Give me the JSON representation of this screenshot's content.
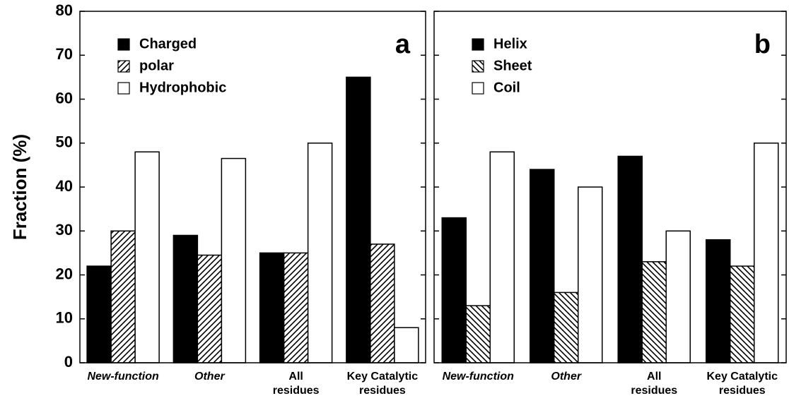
{
  "chart_data": [
    {
      "type": "bar",
      "ylabel": "Fraction (%)",
      "annotation": "a",
      "categories": [
        "New-function",
        "Other",
        "All residues",
        "Key Catalytic residues"
      ],
      "category_styles": [
        "italic",
        "italic",
        "normal",
        "normal"
      ],
      "series": [
        {
          "name": "Charged",
          "color": "#000000",
          "pattern": "solid",
          "values": [
            22,
            29,
            25,
            65
          ]
        },
        {
          "name": "polar",
          "color": "#ffffff",
          "pattern": "hatch-up",
          "values": [
            30,
            24.5,
            25,
            27
          ]
        },
        {
          "name": "Hydrophobic",
          "color": "#ffffff",
          "pattern": "solid",
          "values": [
            48,
            46.5,
            50,
            8
          ]
        }
      ],
      "ylim": [
        0,
        80
      ],
      "yticks": [
        0,
        10,
        20,
        30,
        40,
        50,
        60,
        70,
        80
      ],
      "ytick_labels": true,
      "legend": "upper left"
    },
    {
      "type": "bar",
      "annotation": "b",
      "categories": [
        "New-function",
        "Other",
        "All residues",
        "Key Catalytic residues"
      ],
      "category_styles": [
        "italic",
        "italic",
        "normal",
        "normal"
      ],
      "series": [
        {
          "name": "Helix",
          "color": "#000000",
          "pattern": "solid",
          "values": [
            33,
            44,
            47,
            28
          ]
        },
        {
          "name": "Sheet",
          "color": "#ffffff",
          "pattern": "hatch-down",
          "values": [
            13,
            16,
            23,
            22
          ]
        },
        {
          "name": "Coil",
          "color": "#ffffff",
          "pattern": "solid",
          "values": [
            48,
            40,
            30,
            50
          ]
        }
      ],
      "ylim": [
        0,
        80
      ],
      "yticks": [
        0,
        10,
        20,
        30,
        40,
        50,
        60,
        70,
        80
      ],
      "ytick_labels": false,
      "legend": "upper left"
    }
  ]
}
